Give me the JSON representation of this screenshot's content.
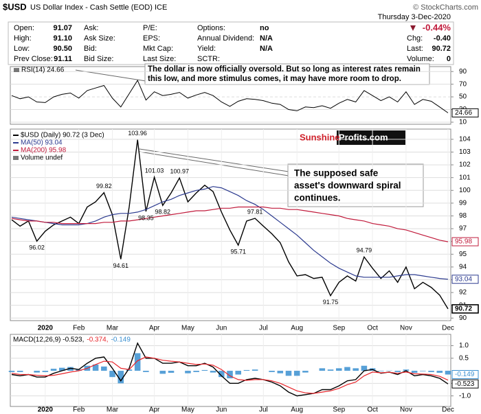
{
  "header": {
    "symbol": "$USD",
    "name": "US Dollar Index - Cash Settle (EOD) ICE",
    "credit": "© StockCharts.com",
    "date": "Thursday  3-Dec-2020",
    "change": "-0.44%",
    "col1": [
      [
        "Open:",
        "91.07"
      ],
      [
        "High:",
        "91.10"
      ],
      [
        "Low:",
        "90.50"
      ],
      [
        "Prev Close:",
        "91.11"
      ]
    ],
    "col2": [
      "Ask:",
      "Ask Size:",
      "Bid:",
      "Bid Size:"
    ],
    "col3": [
      "P/E:",
      "EPS:",
      "Mkt Cap:",
      "Last Size:"
    ],
    "col4_labels": [
      "Options:",
      "Annual Dividend:",
      "Yield:",
      "SCTR:"
    ],
    "col4_values": [
      "no",
      "N/A",
      "N/A"
    ],
    "col5": [
      [
        "Chg:",
        "-0.40"
      ],
      [
        "Last:",
        "90.72"
      ],
      [
        "Volume:",
        "0"
      ]
    ]
  },
  "chart_data": [
    {
      "type": "line",
      "title": "RSI(14) 24.66",
      "color": "#000000",
      "values": [
        52,
        47,
        50,
        42,
        41,
        50,
        54,
        56,
        48,
        60,
        64,
        68,
        48,
        34,
        55,
        76,
        45,
        58,
        52,
        54,
        57,
        48,
        53,
        57,
        52,
        42,
        35,
        43,
        47,
        46,
        44,
        40,
        38,
        30,
        28,
        34,
        33,
        36,
        32,
        40,
        46,
        42,
        60,
        52,
        44,
        50,
        42,
        58,
        38,
        46,
        43,
        34,
        24.66
      ],
      "ylim": [
        6.7,
        97.8
      ],
      "yticks": [
        10,
        30,
        50,
        70,
        90
      ],
      "grid": true,
      "annotation": [
        "The dollar is now officially oversold. But so long as interest rates remain",
        "this low, and more stimulus comes, it may have more room to drop."
      ]
    },
    {
      "type": "line",
      "categories": [
        null,
        null,
        null,
        null,
        "2020",
        null,
        null,
        null,
        "Feb",
        null,
        null,
        null,
        "Mar",
        null,
        null,
        null,
        null,
        "Apr",
        null,
        null,
        null,
        "May",
        null,
        null,
        null,
        "Jun",
        null,
        null,
        null,
        null,
        "Jul",
        null,
        null,
        null,
        "Aug",
        null,
        null,
        null,
        null,
        "Sep",
        null,
        null,
        null,
        "Oct",
        null,
        null,
        null,
        "Nov",
        null,
        null,
        null,
        null,
        "Dec"
      ],
      "series": [
        {
          "name": "$USD (Daily) 90.72 (3 Dec)",
          "color": "#000000",
          "values": [
            97.7,
            97.2,
            97.6,
            96.02,
            96.8,
            97.3,
            97.6,
            97.9,
            97.4,
            98.7,
            99.1,
            99.82,
            98.1,
            94.61,
            98.7,
            103.96,
            98.35,
            101.03,
            98.82,
            99.8,
            100.97,
            99.1,
            99.8,
            100.4,
            99.9,
            98.3,
            96.9,
            95.71,
            97.6,
            97.81,
            97.2,
            96.6,
            95.9,
            94.4,
            93.3,
            93.4,
            93.1,
            93.2,
            91.75,
            92.8,
            93.3,
            92.9,
            94.79,
            93.9,
            93.1,
            93.7,
            92.8,
            94.0,
            92.3,
            92.8,
            92.4,
            91.8,
            90.72
          ],
          "value_labels": [
            null,
            null,
            null,
            "96.02",
            null,
            null,
            null,
            null,
            null,
            null,
            null,
            "99.82",
            null,
            "94.61",
            null,
            "103.96",
            "98.35",
            "101.03",
            "98.82",
            null,
            "100.97",
            null,
            null,
            null,
            null,
            null,
            null,
            "95.71",
            null,
            "97.81",
            null,
            null,
            null,
            null,
            null,
            null,
            null,
            null,
            "91.75",
            null,
            null,
            null,
            "94.79",
            null,
            null,
            null,
            null,
            null,
            null,
            null,
            null,
            null,
            null
          ]
        },
        {
          "name": "MA(50) 93.04",
          "color": "#2b3a8f",
          "values": [
            97.9,
            97.8,
            97.7,
            97.6,
            97.5,
            97.4,
            97.3,
            97.3,
            97.3,
            97.4,
            97.6,
            97.9,
            98.1,
            98.2,
            98.2,
            98.3,
            98.5,
            98.8,
            99.1,
            99.3,
            99.6,
            99.8,
            100.0,
            100.1,
            100.3,
            100.2,
            99.9,
            99.6,
            99.2,
            98.9,
            98.5,
            98.0,
            97.5,
            97.0,
            96.5,
            95.9,
            95.3,
            94.8,
            94.3,
            93.9,
            93.6,
            93.3,
            93.2,
            93.2,
            93.2,
            93.2,
            93.3,
            93.4,
            93.4,
            93.3,
            93.2,
            93.1,
            93.04
          ]
        },
        {
          "name": "MA(200) 95.98",
          "color": "#c0193a",
          "values": [
            97.8,
            97.7,
            97.6,
            97.6,
            97.5,
            97.5,
            97.4,
            97.4,
            97.4,
            97.4,
            97.4,
            97.5,
            97.5,
            97.6,
            97.6,
            97.7,
            97.8,
            97.9,
            98.0,
            98.1,
            98.2,
            98.3,
            98.4,
            98.4,
            98.5,
            98.6,
            98.6,
            98.7,
            98.7,
            98.7,
            98.7,
            98.6,
            98.6,
            98.5,
            98.5,
            98.4,
            98.3,
            98.2,
            98.1,
            98.0,
            97.8,
            97.7,
            97.6,
            97.4,
            97.3,
            97.2,
            97.0,
            96.9,
            96.7,
            96.5,
            96.3,
            96.1,
            95.98
          ]
        }
      ],
      "volume_note": "Volume undef",
      "ylim": [
        89.8,
        104.8
      ],
      "yticks": [
        90,
        91,
        92,
        93,
        94,
        95,
        96,
        97,
        98,
        99,
        100,
        101,
        102,
        103,
        104
      ],
      "grid": true,
      "annotation": [
        "The supposed safe",
        "asset's downward spiral",
        "continues."
      ],
      "logo": [
        "Sunshine",
        "Profits.com"
      ]
    },
    {
      "type": "line",
      "categories": [
        null,
        null,
        null,
        null,
        "2020",
        null,
        null,
        null,
        "Feb",
        null,
        null,
        null,
        "Mar",
        null,
        null,
        null,
        null,
        "Apr",
        null,
        null,
        null,
        "May",
        null,
        null,
        null,
        "Jun",
        null,
        null,
        null,
        null,
        "Jul",
        null,
        null,
        null,
        "Aug",
        null,
        null,
        null,
        null,
        "Sep",
        null,
        null,
        null,
        "Oct",
        null,
        null,
        null,
        "Nov",
        null,
        null,
        null,
        null,
        "Dec"
      ],
      "series": [
        {
          "name": "MACD(12,26,9) -0.523,",
          "color": "#000000",
          "values": [
            -0.15,
            -0.2,
            -0.15,
            -0.25,
            -0.25,
            -0.1,
            0.0,
            0.1,
            0.05,
            0.3,
            0.5,
            0.55,
            0.1,
            -0.4,
            0.1,
            1.1,
            0.5,
            0.5,
            0.3,
            0.3,
            0.35,
            0.2,
            0.2,
            0.3,
            0.15,
            -0.2,
            -0.5,
            -0.5,
            -0.35,
            -0.3,
            -0.35,
            -0.45,
            -0.6,
            -0.85,
            -1.0,
            -0.95,
            -0.9,
            -0.75,
            -0.75,
            -0.6,
            -0.4,
            -0.35,
            0.0,
            0.05,
            -0.1,
            -0.05,
            -0.15,
            0.0,
            -0.2,
            -0.15,
            -0.2,
            -0.3,
            -0.523
          ]
        },
        {
          "name": "-0.374,",
          "color": "#e8252a",
          "values": [
            -0.1,
            -0.15,
            -0.15,
            -0.18,
            -0.2,
            -0.18,
            -0.12,
            -0.05,
            0.0,
            0.1,
            0.25,
            0.38,
            0.35,
            0.1,
            0.05,
            0.4,
            0.55,
            0.5,
            0.42,
            0.38,
            0.35,
            0.3,
            0.25,
            0.27,
            0.22,
            0.05,
            -0.2,
            -0.35,
            -0.38,
            -0.35,
            -0.35,
            -0.4,
            -0.5,
            -0.65,
            -0.8,
            -0.88,
            -0.9,
            -0.85,
            -0.8,
            -0.7,
            -0.55,
            -0.45,
            -0.2,
            -0.05,
            -0.08,
            -0.06,
            -0.1,
            -0.05,
            -0.12,
            -0.13,
            -0.15,
            -0.22,
            -0.374
          ]
        },
        {
          "name": "-0.149",
          "color": "#3a8fd0",
          "type": "bar",
          "values": [
            -0.05,
            -0.05,
            0,
            -0.07,
            -0.05,
            0.08,
            0.12,
            0.15,
            0.05,
            0.2,
            0.25,
            0.17,
            -0.25,
            -0.5,
            0.05,
            0.7,
            -0.05,
            0,
            -0.12,
            -0.08,
            0,
            -0.1,
            -0.05,
            0.03,
            -0.07,
            -0.25,
            -0.3,
            -0.15,
            0.03,
            0.05,
            0,
            -0.05,
            -0.1,
            -0.2,
            -0.2,
            -0.07,
            0,
            0.1,
            0.05,
            0.1,
            0.15,
            0.1,
            0.2,
            0.1,
            -0.02,
            0.01,
            -0.05,
            0.05,
            -0.08,
            -0.02,
            -0.05,
            -0.08,
            -0.149
          ]
        }
      ],
      "ylim": [
        -1.42,
        1.45
      ],
      "yticks": [
        {
          "value": 1,
          "label": "1.0"
        },
        0.5,
        -0.5,
        {
          "value": -1,
          "label": "-1.0"
        }
      ],
      "grid": true
    }
  ]
}
